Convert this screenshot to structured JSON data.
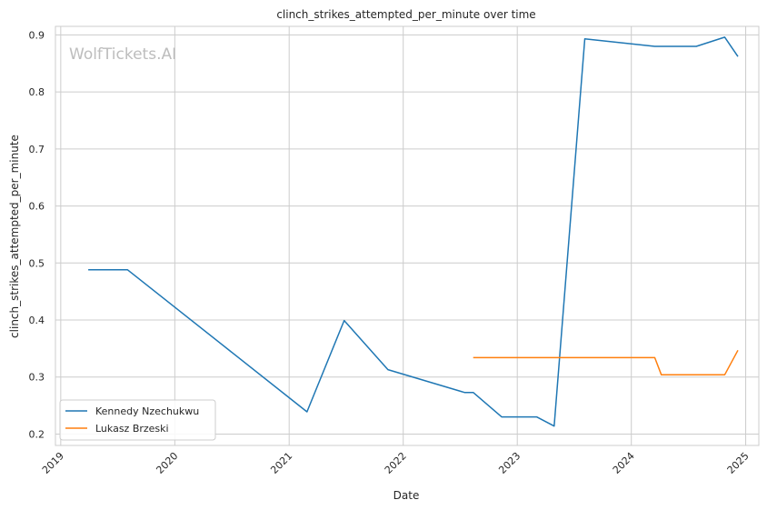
{
  "chart_data": {
    "type": "line",
    "title": "clinch_strikes_attempted_per_minute over time",
    "xlabel": "Date",
    "ylabel": "clinch_strikes_attempted_per_minute",
    "watermark": "WolfTickets.AI",
    "x_ticks": [
      "2019",
      "2020",
      "2021",
      "2022",
      "2023",
      "2024",
      "2025"
    ],
    "y_ticks": [
      "0.2",
      "0.3",
      "0.4",
      "0.5",
      "0.6",
      "0.7",
      "0.8",
      "0.9"
    ],
    "xlim": [
      "2018-12-15",
      "2025-02-12"
    ],
    "ylim": [
      0.18,
      0.915
    ],
    "grid": true,
    "legend_position": "lower-left",
    "series": [
      {
        "name": "Kennedy Nzechukwu",
        "color": "#1f77b4",
        "points": [
          {
            "x": "2019-03-30",
            "y": 0.488
          },
          {
            "x": "2019-08-03",
            "y": 0.488
          },
          {
            "x": "2021-02-27",
            "y": 0.239
          },
          {
            "x": "2021-06-26",
            "y": 0.399
          },
          {
            "x": "2021-11-13",
            "y": 0.313
          },
          {
            "x": "2022-07-16",
            "y": 0.273
          },
          {
            "x": "2022-08-13",
            "y": 0.273
          },
          {
            "x": "2022-11-12",
            "y": 0.23
          },
          {
            "x": "2023-03-04",
            "y": 0.23
          },
          {
            "x": "2023-04-29",
            "y": 0.214
          },
          {
            "x": "2023-08-05",
            "y": 0.893
          },
          {
            "x": "2024-03-16",
            "y": 0.88
          },
          {
            "x": "2024-07-27",
            "y": 0.88
          },
          {
            "x": "2024-10-26",
            "y": 0.896
          },
          {
            "x": "2024-12-07",
            "y": 0.862
          }
        ]
      },
      {
        "name": "Lukasz Brzeski",
        "color": "#ff7f0e",
        "points": [
          {
            "x": "2022-08-13",
            "y": 0.334
          },
          {
            "x": "2024-03-16",
            "y": 0.334
          },
          {
            "x": "2024-04-06",
            "y": 0.304
          },
          {
            "x": "2024-10-26",
            "y": 0.304
          },
          {
            "x": "2024-12-07",
            "y": 0.347
          }
        ]
      }
    ]
  }
}
